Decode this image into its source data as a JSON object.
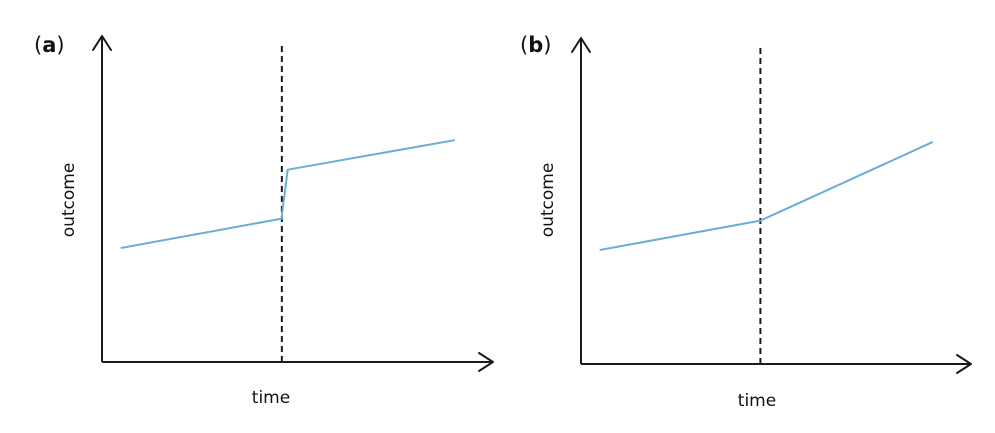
{
  "colors": {
    "line": "#6aaed6",
    "axis": "#1a1a1a"
  },
  "chart_data": [
    {
      "type": "line",
      "panel_label": "a",
      "xlabel": "time",
      "ylabel": "outcome",
      "xlim": [
        0,
        10
      ],
      "ylim": [
        0,
        10
      ],
      "intervention_x": 4.6,
      "series": [
        {
          "x": [
            0.5,
            4.6,
            4.6,
            4.75,
            9.0
          ],
          "y": [
            3.5,
            4.4,
            4.5,
            5.9,
            6.8
          ]
        }
      ]
    },
    {
      "type": "line",
      "panel_label": "b",
      "xlabel": "time",
      "ylabel": "outcome",
      "xlim": [
        0,
        10
      ],
      "ylim": [
        0,
        10
      ],
      "intervention_x": 4.6,
      "series": [
        {
          "x": [
            0.5,
            4.6,
            9.0
          ],
          "y": [
            3.5,
            4.4,
            6.8
          ]
        }
      ]
    }
  ]
}
